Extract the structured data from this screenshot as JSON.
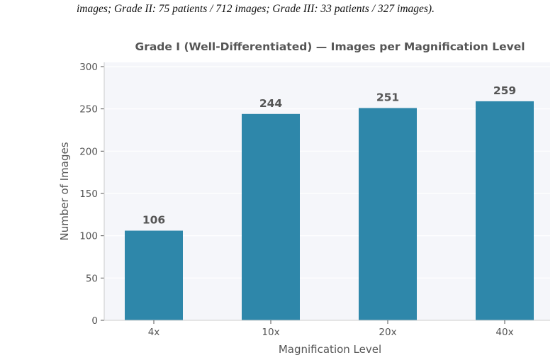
{
  "caption": "images; Grade II: 75 patients / 712 images; Grade III: 33 patients / 327 images).",
  "chart_data": {
    "type": "bar",
    "title": "Grade I (Well-Differentiated) — Images per Magnification Level",
    "xlabel": "Magnification Level",
    "ylabel": "Number of Images",
    "categories": [
      "4x",
      "10x",
      "20x",
      "40x"
    ],
    "values": [
      106,
      244,
      251,
      259
    ],
    "data_labels": [
      "106",
      "244",
      "251",
      "259"
    ],
    "ylim": [
      0,
      305
    ],
    "yticks": [
      0,
      50,
      100,
      150,
      200,
      250,
      300
    ],
    "bar_color": "#2e87aa",
    "plot_background": "#f5f6fa",
    "grid": true
  }
}
